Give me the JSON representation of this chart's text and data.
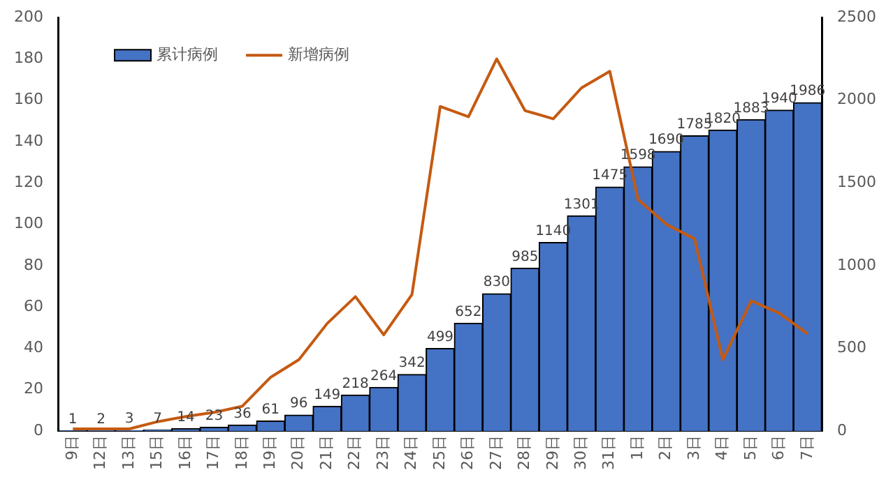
{
  "chart_data": {
    "type": "bar",
    "categories": [
      "9日",
      "12日",
      "13日",
      "15日",
      "16日",
      "17日",
      "18日",
      "19日",
      "20日",
      "21日",
      "22日",
      "23日",
      "24日",
      "25日",
      "26日",
      "27日",
      "28日",
      "29日",
      "30日",
      "31日",
      "1日",
      "2日",
      "3日",
      "4日",
      "5日",
      "6日",
      "7日"
    ],
    "series": [
      {
        "name": "累计病例",
        "axis": "y2",
        "color": "#4472c4",
        "values": [
          1,
          2,
          3,
          7,
          14,
          23,
          36,
          61,
          96,
          149,
          218,
          264,
          342,
          499,
          652,
          830,
          985,
          1140,
          1301,
          1475,
          1598,
          1690,
          1785,
          1820,
          1883,
          1940,
          1986
        ],
        "value_labels": [
          "1",
          "2",
          "3",
          "7",
          "14",
          "23",
          "36",
          "61",
          "96",
          "149",
          "218",
          "264",
          "342",
          "499",
          "652",
          "830",
          "985",
          "1140",
          "1301",
          "1475",
          "1598",
          "1690",
          "1785",
          "1820",
          "1883",
          "1940",
          "1986"
        ]
      },
      {
        "name": "新增病例",
        "type": "line",
        "axis": "y",
        "color": "#c55a11",
        "values": [
          1,
          1,
          1,
          4.5,
          7,
          9,
          12,
          26,
          34.5,
          52,
          65,
          46.5,
          66,
          157,
          152,
          180,
          155,
          151,
          166,
          174,
          112,
          100,
          93,
          34.5,
          63,
          57,
          47
        ]
      }
    ],
    "ylim": [
      0,
      200
    ],
    "yticks": [
      0,
      20,
      40,
      60,
      80,
      100,
      120,
      140,
      160,
      180,
      200
    ],
    "y2lim": [
      0,
      2500
    ],
    "y2ticks": [
      0,
      500,
      1000,
      1500,
      2000,
      2500
    ],
    "legend": "top left",
    "grid": false,
    "marker": "none"
  }
}
